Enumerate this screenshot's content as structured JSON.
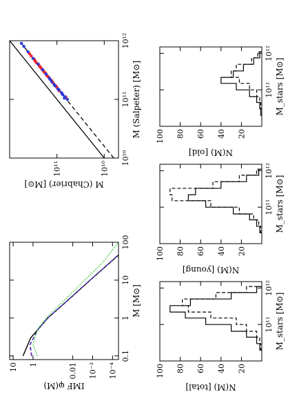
{
  "chart_data": [
    {
      "id": "imf",
      "type": "line",
      "xlabel": "M [M⊙]",
      "ylabel": "IMF φ(M)",
      "x_scale": "log",
      "y_scale": "log",
      "xlim": [
        0.08,
        100
      ],
      "ylim": [
        5e-05,
        15
      ],
      "x_ticks": [
        {
          "v": 0.1,
          "label": "0.1"
        },
        {
          "v": 1,
          "label": "1"
        },
        {
          "v": 10,
          "label": "10"
        },
        {
          "v": 100,
          "label": "100"
        }
      ],
      "y_ticks": [
        {
          "v": 10,
          "label": "10"
        },
        {
          "v": 1,
          "label": "1"
        },
        {
          "v": 0.01,
          "label": "0.01"
        },
        {
          "v": 0.001,
          "label": "10⁻³"
        },
        {
          "v": 0.0001,
          "label": "10⁻⁴"
        }
      ],
      "series": [
        {
          "style": "solid-black",
          "color": "#000000",
          "x": [
            0.1,
            0.3,
            1,
            3,
            10,
            30,
            100
          ],
          "y": [
            3.2,
            1.3,
            0.18,
            0.017,
            0.00133,
            0.000124,
            9.5e-06
          ]
        },
        {
          "style": "dashed-red",
          "color": "#e8242d",
          "x": [
            0.1,
            0.2,
            0.5,
            1,
            3,
            10,
            30,
            100
          ],
          "y": [
            1.2,
            1.45,
            0.55,
            0.18,
            0.017,
            0.00133,
            0.000124,
            9.5e-06
          ]
        },
        {
          "style": "dashed-blue",
          "color": "#2d3bd9",
          "x": [
            0.1,
            0.2,
            0.5,
            1,
            3,
            10,
            30,
            100
          ],
          "y": [
            1.15,
            1.4,
            0.56,
            0.185,
            0.0175,
            0.00137,
            0.000128,
            9.8e-06
          ]
        },
        {
          "style": "dotted-green",
          "color": "#2bbf2b",
          "x": [
            0.1,
            0.2,
            0.5,
            1,
            3,
            10,
            30,
            100
          ],
          "y": [
            0.6,
            1.0,
            0.6,
            0.22,
            0.026,
            0.0025,
            0.0003,
            5e-05
          ]
        }
      ]
    },
    {
      "id": "mass-mass",
      "type": "scatter",
      "xlabel": "M (Salpeter) [M⊙]",
      "ylabel": "M (Chabrier) [M⊙]",
      "x_scale": "log",
      "y_scale": "log",
      "xlim": [
        10000000000.0,
        1000000000000.0
      ],
      "ylim": [
        5000000000.0,
        1000000000000.0
      ],
      "x_ticks": [
        {
          "v": 10000000000.0,
          "label": "10¹⁰"
        },
        {
          "v": 100000000000.0,
          "label": "10¹¹"
        },
        {
          "v": 1000000000000.0,
          "label": "10¹²"
        }
      ],
      "y_ticks": [
        {
          "v": 10000000000.0,
          "label": "10¹⁰"
        },
        {
          "v": 100000000000.0,
          "label": "10¹¹"
        }
      ],
      "lines": [
        {
          "style": "solid",
          "description": "one-to-one",
          "x": [
            10000000000.0,
            1000000000000.0
          ],
          "y": [
            10000000000.0,
            1000000000000.0
          ]
        },
        {
          "style": "dashed",
          "description": "offset",
          "x": [
            10000000000.0,
            1000000000000.0
          ],
          "y": [
            6300000000.0,
            630000000000.0
          ]
        }
      ],
      "series": [
        {
          "color": "#e8242d",
          "marker": "dot",
          "x": [
            120000000000.0,
            140000000000.0,
            160000000000.0,
            180000000000.0,
            200000000000.0,
            220000000000.0,
            250000000000.0,
            280000000000.0,
            300000000000.0,
            330000000000.0,
            360000000000.0,
            400000000000.0,
            450000000000.0,
            500000000000.0,
            110000000000.0,
            130000000000.0,
            170000000000.0,
            210000000000.0,
            260000000000.0,
            310000000000.0,
            380000000000.0,
            420000000000.0,
            150000000000.0,
            190000000000.0,
            240000000000.0,
            290000000000.0,
            350000000000.0,
            480000000000.0,
            550000000000.0,
            600000000000.0
          ],
          "y": [
            75000000000.0,
            90000000000.0,
            100000000000.0,
            115000000000.0,
            125000000000.0,
            140000000000.0,
            160000000000.0,
            175000000000.0,
            190000000000.0,
            210000000000.0,
            230000000000.0,
            250000000000.0,
            290000000000.0,
            320000000000.0,
            65000000000.0,
            80000000000.0,
            105000000000.0,
            130000000000.0,
            165000000000.0,
            195000000000.0,
            240000000000.0,
            270000000000.0,
            95000000000.0,
            120000000000.0,
            150000000000.0,
            185000000000.0,
            220000000000.0,
            300000000000.0,
            350000000000.0,
            380000000000.0
          ]
        },
        {
          "color": "#2d3bd9",
          "marker": "dot",
          "x": [
            100000000000.0,
            110000000000.0,
            120000000000.0,
            130000000000.0,
            150000000000.0,
            170000000000.0,
            200000000000.0,
            230000000000.0,
            270000000000.0,
            320000000000.0,
            400000000000.0,
            500000000000.0,
            650000000000.0,
            800000000000.0,
            900000000000.0,
            105000000000.0,
            125000000000.0,
            145000000000.0,
            180000000000.0,
            220000000000.0
          ],
          "y": [
            60000000000.0,
            68000000000.0,
            75000000000.0,
            80000000000.0,
            95000000000.0,
            110000000000.0,
            130000000000.0,
            145000000000.0,
            170000000000.0,
            200000000000.0,
            250000000000.0,
            320000000000.0,
            410000000000.0,
            500000000000.0,
            560000000000.0,
            70000000000.0,
            78000000000.0,
            90000000000.0,
            115000000000.0,
            140000000000.0
          ]
        }
      ]
    },
    {
      "id": "hist-total",
      "type": "histogram",
      "xlabel": "M_stars [M⊙]",
      "ylabel": "N(M) [total]",
      "x_scale": "log",
      "xlim": [
        10000000000.0,
        1500000000000.0
      ],
      "ylim": [
        0,
        100
      ],
      "x_ticks": [
        {
          "v": 100000000000.0,
          "label": "10¹¹"
        },
        {
          "v": 1000000000000.0,
          "label": "10¹²"
        }
      ],
      "y_ticks": [
        {
          "v": 20,
          "label": "20"
        },
        {
          "v": 40,
          "label": "40"
        },
        {
          "v": 60,
          "label": "60"
        },
        {
          "v": 80,
          "label": "80"
        },
        {
          "v": 100,
          "label": "100"
        }
      ],
      "bin_edges": [
        20000000000.0,
        30000000000.0,
        45000000000.0,
        65000000000.0,
        100000000000.0,
        150000000000.0,
        220000000000.0,
        330000000000.0,
        500000000000.0,
        750000000000.0,
        1100000000000.0
      ],
      "series": [
        {
          "style": "solid",
          "counts": [
            2,
            5,
            15,
            30,
            55,
            75,
            90,
            70,
            30,
            5
          ]
        },
        {
          "style": "dashed",
          "counts": [
            1,
            2,
            5,
            15,
            25,
            50,
            72,
            78,
            45,
            15
          ]
        }
      ]
    },
    {
      "id": "hist-young",
      "type": "histogram",
      "xlabel": "M_stars [M⊙]",
      "ylabel": "N(M) [young]",
      "x_scale": "log",
      "xlim": [
        10000000000.0,
        1500000000000.0
      ],
      "ylim": [
        0,
        100
      ],
      "x_ticks": [
        {
          "v": 100000000000.0,
          "label": "10¹¹"
        },
        {
          "v": 1000000000000.0,
          "label": "10¹²"
        }
      ],
      "y_ticks": [
        {
          "v": 20,
          "label": "20"
        },
        {
          "v": 40,
          "label": "40"
        },
        {
          "v": 60,
          "label": "60"
        },
        {
          "v": 80,
          "label": "80"
        },
        {
          "v": 100,
          "label": "100"
        }
      ],
      "bin_edges": [
        20000000000.0,
        30000000000.0,
        45000000000.0,
        65000000000.0,
        100000000000.0,
        150000000000.0,
        220000000000.0,
        330000000000.0,
        500000000000.0,
        750000000000.0,
        1100000000000.0
      ],
      "series": [
        {
          "style": "solid",
          "counts": [
            2,
            5,
            12,
            28,
            55,
            72,
            65,
            40,
            15,
            3
          ]
        },
        {
          "style": "dashed",
          "counts": [
            1,
            3,
            8,
            22,
            50,
            88,
            90,
            48,
            22,
            5
          ]
        }
      ]
    },
    {
      "id": "hist-old",
      "type": "histogram",
      "xlabel": "M_stars [M⊙]",
      "ylabel": "N(M) [old]",
      "x_scale": "log",
      "xlim": [
        10000000000.0,
        1500000000000.0
      ],
      "ylim": [
        0,
        100
      ],
      "x_ticks": [
        {
          "v": 100000000000.0,
          "label": "10¹¹"
        },
        {
          "v": 1000000000000.0,
          "label": "10¹²"
        }
      ],
      "y_ticks": [
        {
          "v": 20,
          "label": "20"
        },
        {
          "v": 40,
          "label": "40"
        },
        {
          "v": 60,
          "label": "60"
        },
        {
          "v": 80,
          "label": "80"
        },
        {
          "v": 100,
          "label": "100"
        }
      ],
      "bin_edges": [
        20000000000.0,
        30000000000.0,
        45000000000.0,
        65000000000.0,
        100000000000.0,
        150000000000.0,
        220000000000.0,
        330000000000.0,
        500000000000.0,
        750000000000.0,
        1100000000000.0
      ],
      "series": [
        {
          "style": "solid",
          "counts": [
            1,
            2,
            5,
            12,
            25,
            40,
            28,
            18,
            8,
            2
          ]
        },
        {
          "style": "dashed",
          "counts": [
            0,
            1,
            2,
            5,
            12,
            22,
            30,
            25,
            10,
            4
          ]
        }
      ]
    }
  ]
}
